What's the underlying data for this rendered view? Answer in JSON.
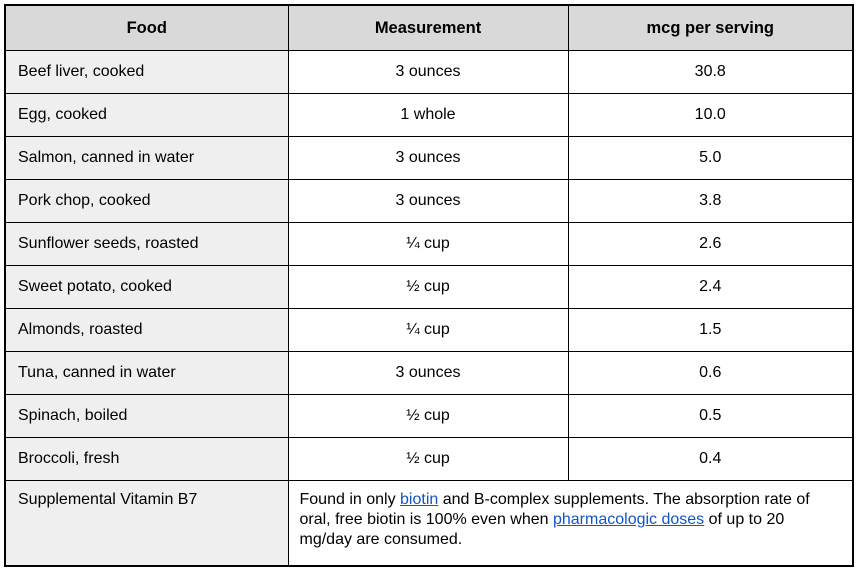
{
  "colors": {
    "header_bg": "#d9d9d9",
    "food_column_bg": "#efefef",
    "border": "#000000",
    "link": "#1155cc"
  },
  "table": {
    "columns": [
      "Food",
      "Measurement",
      "mcg per serving"
    ],
    "rows": [
      {
        "food": "Beef liver, cooked",
        "measurement": "3 ounces",
        "mcg": "30.8"
      },
      {
        "food": "Egg, cooked",
        "measurement": "1 whole",
        "mcg": "10.0"
      },
      {
        "food": "Salmon, canned in water",
        "measurement": "3 ounces",
        "mcg": "5.0"
      },
      {
        "food": "Pork chop, cooked",
        "measurement": "3 ounces",
        "mcg": "3.8"
      },
      {
        "food": "Sunflower seeds, roasted",
        "measurement": "¼ cup",
        "mcg": "2.6"
      },
      {
        "food": "Sweet potato, cooked",
        "measurement": "½ cup",
        "mcg": "2.4"
      },
      {
        "food": "Almonds, roasted",
        "measurement": "¼ cup",
        "mcg": "1.5"
      },
      {
        "food": "Tuna, canned in water",
        "measurement": "3 ounces",
        "mcg": "0.6"
      },
      {
        "food": "Spinach, boiled",
        "measurement": "½ cup",
        "mcg": "0.5"
      },
      {
        "food": "Broccoli, fresh",
        "measurement": "½ cup",
        "mcg": "0.4"
      }
    ],
    "footer": {
      "food": "Supplemental Vitamin B7",
      "note_segments": [
        {
          "text": "Found in only ",
          "link": false
        },
        {
          "text": "biotin",
          "link": true,
          "name": "biotin-link"
        },
        {
          "text": " and B-complex supplements. The absorption rate of oral, free biotin is 100% even when ",
          "link": false
        },
        {
          "text": "pharmacologic doses",
          "link": true,
          "name": "pharmacologic-doses-link"
        },
        {
          "text": " of up to 20 mg/day are consumed.",
          "link": false
        }
      ]
    }
  }
}
